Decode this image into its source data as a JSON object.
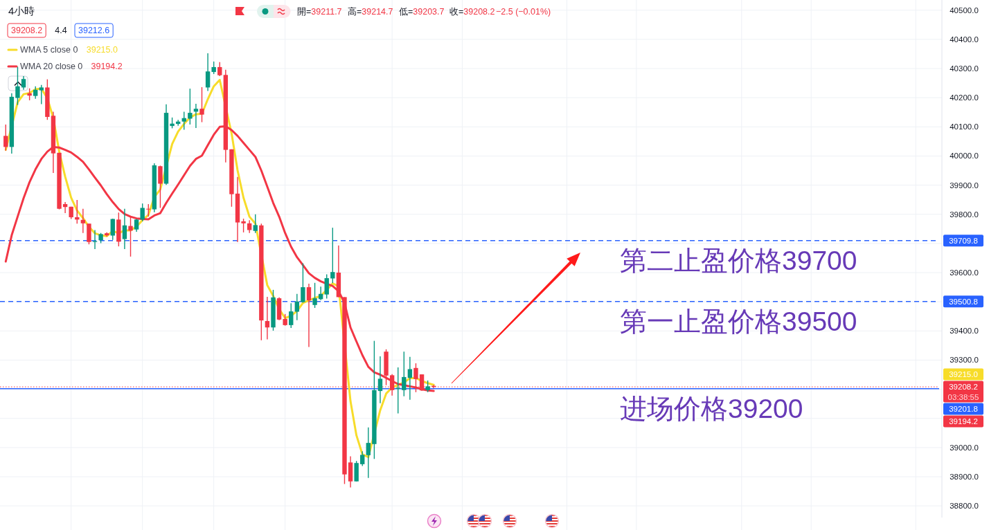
{
  "chart_data": {
    "type": "candlestick",
    "title": "4小時",
    "categories": [
      null,
      null,
      null,
      null,
      null,
      null,
      null,
      null,
      null,
      null,
      null,
      null,
      null,
      null,
      null,
      null,
      null,
      null,
      null,
      null,
      null,
      null,
      null,
      null,
      null,
      null,
      null,
      null,
      null,
      null,
      null,
      null,
      null,
      null,
      null,
      null,
      null,
      null,
      null,
      null,
      null,
      null,
      null,
      null,
      null,
      null,
      null,
      null,
      null,
      null,
      null,
      null,
      null,
      null,
      null,
      null,
      null,
      null,
      null,
      null,
      null,
      null,
      null,
      null,
      null,
      null,
      null,
      null,
      null,
      null,
      null,
      null,
      null,
      null,
      null,
      null,
      null,
      null,
      null,
      null,
      null,
      null,
      null,
      null,
      null,
      null,
      null,
      null,
      null,
      null,
      null,
      null,
      null,
      null,
      null,
      null,
      null,
      null,
      null,
      null,
      null,
      null,
      null,
      null,
      null,
      null,
      null,
      null,
      null,
      null,
      null,
      null,
      null,
      null,
      null,
      null,
      null,
      null,
      null,
      null,
      null,
      null,
      null,
      null,
      null,
      null,
      null,
      null,
      null,
      null,
      null,
      null,
      null,
      null,
      null,
      null,
      null,
      null,
      null,
      null,
      null,
      null,
      null,
      null,
      null,
      null,
      null,
      null,
      null,
      null,
      null,
      null,
      null,
      null,
      null,
      null,
      null,
      null
    ],
    "ohlc": [
      [
        40069,
        40108,
        40018,
        40031
      ],
      [
        40031,
        40215,
        40008,
        40203
      ],
      [
        40199,
        40306,
        40175,
        40239
      ],
      [
        40235,
        40274,
        40227,
        40264
      ],
      [
        40215,
        40232,
        40191,
        40207
      ],
      [
        40206,
        40239,
        40196,
        40227
      ],
      [
        40225,
        40244,
        40178,
        40235
      ],
      [
        40235,
        40263,
        40124,
        40134
      ],
      [
        40138,
        40152,
        39942,
        40009
      ],
      [
        40011,
        40011,
        39817,
        39819
      ],
      [
        39835,
        39842,
        39804,
        39825
      ],
      [
        39826,
        39826,
        39784,
        39790
      ],
      [
        39790,
        39849,
        39768,
        39782
      ],
      [
        39781,
        39819,
        39736,
        39769
      ],
      [
        39768,
        39768,
        39697,
        39705
      ],
      [
        39705,
        39746,
        39681,
        39708
      ],
      [
        39711,
        39736,
        39701,
        39732
      ],
      [
        39735,
        39738,
        39724,
        39728
      ],
      [
        39727,
        39785,
        39712,
        39784
      ],
      [
        39782,
        39806,
        39690,
        39706
      ],
      [
        39715,
        39819,
        39681,
        39762
      ],
      [
        39760,
        39793,
        39655,
        39744
      ],
      [
        39748,
        39784,
        39740,
        39782
      ],
      [
        39782,
        39837,
        39776,
        39822
      ],
      [
        39819,
        39835,
        39792,
        39817
      ],
      [
        39817,
        39975,
        39807,
        39968
      ],
      [
        39965,
        39967,
        39822,
        39905
      ],
      [
        39905,
        40177,
        39901,
        40148
      ],
      [
        40103,
        40132,
        40095,
        40111
      ],
      [
        40110,
        40124,
        40104,
        40118
      ],
      [
        40118,
        40152,
        40090,
        40130
      ],
      [
        40128,
        40231,
        40108,
        40148
      ],
      [
        40152,
        40179,
        40096,
        40162
      ],
      [
        40162,
        40236,
        40116,
        40142
      ],
      [
        40235,
        40352,
        40223,
        40290
      ],
      [
        40288,
        40324,
        40281,
        40305
      ],
      [
        40305,
        40322,
        40274,
        40277
      ],
      [
        40278,
        40296,
        39978,
        40021
      ],
      [
        40023,
        40023,
        39826,
        39869
      ],
      [
        39871,
        39928,
        39705,
        39772
      ],
      [
        39776,
        39785,
        39738,
        39769
      ],
      [
        39769,
        39780,
        39736,
        39746
      ],
      [
        39743,
        39800,
        39736,
        39763
      ],
      [
        39762,
        39768,
        39368,
        39436
      ],
      [
        39434,
        39517,
        39371,
        39412
      ],
      [
        39412,
        39541,
        39401,
        39515
      ],
      [
        39512,
        39515,
        39437,
        39439
      ],
      [
        39441,
        39458,
        39418,
        39420
      ],
      [
        39420,
        39495,
        39410,
        39467
      ],
      [
        39466,
        39527,
        39437,
        39501
      ],
      [
        39499,
        39632,
        39497,
        39550
      ],
      [
        39550,
        39562,
        39345,
        39505
      ],
      [
        39489,
        39565,
        39479,
        39512
      ],
      [
        39509,
        39552,
        39506,
        39527
      ],
      [
        39525,
        39594,
        39511,
        39581
      ],
      [
        39580,
        39754,
        39564,
        39602
      ],
      [
        39600,
        39693,
        39516,
        39516
      ],
      [
        39516,
        39516,
        38875,
        38908
      ],
      [
        38949,
        38970,
        38863,
        38884
      ],
      [
        38884,
        38954,
        38884,
        38947
      ],
      [
        38943,
        38987,
        38937,
        38975
      ],
      [
        38974,
        39069,
        38896,
        39016
      ],
      [
        39012,
        39366,
        38961,
        39197
      ],
      [
        39194,
        39313,
        39152,
        39236
      ],
      [
        39329,
        39337,
        39214,
        39247
      ],
      [
        39248,
        39252,
        39178,
        39197
      ],
      [
        39201,
        39275,
        39117,
        39205
      ],
      [
        39197,
        39329,
        39176,
        39242
      ],
      [
        39239,
        39311,
        39164,
        39269
      ],
      [
        39273,
        39289,
        39190,
        39235
      ],
      [
        39251,
        39251,
        39194,
        39196
      ],
      [
        39197,
        39230,
        39190,
        39210
      ],
      [
        39211.7,
        39214.7,
        39203.7,
        39208.2
      ],
      null,
      null,
      null,
      null,
      null,
      null,
      null,
      null,
      null,
      null,
      null,
      null,
      null,
      null,
      null,
      null,
      null,
      null,
      null,
      null,
      null,
      null,
      null,
      null,
      null,
      null,
      null,
      null,
      null,
      null,
      null,
      null,
      null,
      null,
      null,
      null,
      null,
      null,
      null,
      null,
      null,
      null,
      null,
      null,
      null,
      null,
      null,
      null,
      null,
      null,
      null,
      null,
      null,
      null,
      null,
      null,
      null,
      null,
      null,
      null,
      null,
      null,
      null,
      null,
      null,
      null,
      null,
      null,
      null,
      null,
      null,
      null,
      null,
      null,
      null,
      null,
      null,
      null,
      null,
      null,
      null,
      null,
      null,
      null,
      null
    ],
    "colors": [
      "#f23645",
      "#089981",
      "#089981",
      "#089981",
      "#f23645",
      "#089981",
      "#089981",
      "#f23645",
      "#f23645",
      "#f23645",
      "#f23645",
      "#f23645",
      "#f23645",
      "#f23645",
      "#f23645",
      "#089981",
      "#089981",
      "#f23645",
      "#089981",
      "#f23645",
      "#089981",
      "#f23645",
      "#089981",
      "#089981",
      "#f23645",
      "#089981",
      "#f23645",
      "#089981",
      "#089981",
      "#089981",
      "#089981",
      "#089981",
      "#089981",
      "#f23645",
      "#089981",
      "#089981",
      "#f23645",
      "#f23645",
      "#f23645",
      "#f23645",
      "#f23645",
      "#f23645",
      "#089981",
      "#f23645",
      "#f23645",
      "#089981",
      "#f23645",
      "#f23645",
      "#089981",
      "#089981",
      "#089981",
      "#f23645",
      "#089981",
      "#089981",
      "#089981",
      "#089981",
      "#f23645",
      "#f23645",
      "#f23645",
      "#089981",
      "#089981",
      "#089981",
      "#089981",
      "#089981",
      "#f23645",
      "#f23645",
      "#089981",
      "#089981",
      "#089981",
      "#f23645",
      "#f23645",
      "#089981",
      "#f23645",
      null,
      null,
      null,
      null,
      null,
      null,
      null,
      null,
      null,
      null,
      null,
      null,
      null,
      null,
      null,
      null,
      null,
      null,
      null,
      null,
      null,
      null,
      null,
      null,
      null,
      null,
      null,
      null,
      null,
      null,
      null,
      null,
      null,
      null,
      null,
      null,
      null,
      null,
      null,
      null,
      null,
      null,
      null,
      null,
      null,
      null,
      null,
      null,
      null,
      null,
      null,
      null,
      null,
      null,
      null,
      null,
      null,
      null,
      null,
      null,
      null,
      null,
      null,
      null,
      null,
      null,
      null,
      null,
      null,
      null,
      null,
      null,
      null,
      null,
      null,
      null,
      null,
      null,
      null,
      null,
      null,
      null,
      null,
      null,
      null
    ],
    "series": [
      {
        "name": "WMA 5 close 0",
        "type": "line",
        "color": "#f7dc2a",
        "values": [
          40021,
          null,
          40184,
          40212,
          40216,
          40229,
          40231,
          40198,
          40130,
          40015,
          39929,
          39857,
          39813,
          39787,
          39757,
          39735,
          39728,
          39725,
          39743,
          39735,
          39745,
          39745,
          39758,
          39780,
          39798,
          39859,
          39885,
          null,
          40041,
          40084,
          40110,
          40132,
          40143,
          40145,
          40195,
          40239,
          40261,
          null,
          40077,
          39951,
          39857,
          39792,
          39768,
          null,
          39557,
          39520,
          39475,
          39444,
          39452,
          39468,
          39496,
          39505,
          39513,
          39520,
          39541,
          39563,
          39553,
          null,
          39159,
          39042,
          38977,
          38967,
          null,
          39128,
          39185,
          39206,
          39215,
          39223,
          39238,
          39239,
          39228,
          39221,
          39215.0,
          null,
          null,
          null,
          null,
          null,
          null,
          null,
          null,
          null,
          null,
          null,
          null,
          null,
          null,
          null,
          null,
          null,
          null,
          null,
          null,
          null,
          null,
          null,
          null,
          null,
          null,
          null,
          null,
          null,
          null,
          null,
          null,
          null,
          null,
          null,
          null,
          null,
          null,
          null,
          null,
          null,
          null,
          null,
          null,
          null,
          null,
          null,
          null,
          null,
          null,
          null,
          null,
          null,
          null,
          null,
          null,
          null,
          null,
          null,
          null,
          null,
          null,
          null,
          null,
          null,
          null,
          null,
          null,
          null,
          null,
          null,
          null,
          null,
          null,
          null,
          null,
          null,
          null,
          null,
          null,
          null,
          null,
          null,
          null,
          null
        ]
      },
      {
        "name": "WMA 20 close 0",
        "type": "line",
        "color": "#f23645",
        "values": [
          39638,
          39728,
          39792,
          39855,
          39910,
          39954,
          39990,
          40015,
          40031,
          40029,
          40021,
          40012,
          39997,
          39980,
          39954,
          39926,
          39899,
          39869,
          39842,
          39818,
          39801,
          39792,
          39786,
          39784,
          39783,
          39796,
          39804,
          39839,
          39871,
          39902,
          39934,
          39966,
          39990,
          40001,
          40037,
          40073,
          40100,
          40102,
          40089,
          40069,
          40045,
          40021,
          39997,
          39950,
          39895,
          39839,
          39792,
          39736,
          39689,
          39653,
          39626,
          39598,
          39582,
          39570,
          39562,
          39554,
          39536,
          39496,
          39412,
          39364,
          39317,
          39277,
          39258,
          39250,
          39239,
          39228,
          39218,
          39214,
          39210,
          39206,
          39200,
          39196,
          39194.2,
          null,
          null,
          null,
          null,
          null,
          null,
          null,
          null,
          null,
          null,
          null,
          null,
          null,
          null,
          null,
          null,
          null,
          null,
          null,
          null,
          null,
          null,
          null,
          null,
          null,
          null,
          null,
          null,
          null,
          null,
          null,
          null,
          null,
          null,
          null,
          null,
          null,
          null,
          null,
          null,
          null,
          null,
          null,
          null,
          null,
          null,
          null,
          null,
          null,
          null,
          null,
          null,
          null,
          null,
          null,
          null,
          null,
          null,
          null,
          null,
          null,
          null,
          null,
          null,
          null,
          null,
          null,
          null,
          null,
          null,
          null,
          null,
          null,
          null,
          null,
          null,
          null,
          null,
          null,
          null,
          null,
          null,
          null,
          null,
          null
        ]
      }
    ],
    "ylim": [
      38760,
      40535
    ],
    "yticks": [
      {
        "value": 38800,
        "label": "38800.0"
      },
      {
        "value": 38900,
        "label": "38900.0"
      },
      {
        "value": 39000,
        "label": "39000.0"
      },
      {
        "value": 39100,
        "label": null
      },
      {
        "value": 39200,
        "label": null
      },
      {
        "value": 39300,
        "label": "39300.0"
      },
      {
        "value": 39400,
        "label": "39400.0"
      },
      {
        "value": 39500,
        "label": null
      },
      {
        "value": 39600,
        "label": "39600.0"
      },
      {
        "value": 39700,
        "label": null
      },
      {
        "value": 39800,
        "label": "39800.0"
      },
      {
        "value": 39900,
        "label": "39900.0"
      },
      {
        "value": 40000,
        "label": "40000.0"
      },
      {
        "value": 40100,
        "label": "40100.0"
      },
      {
        "value": 40200,
        "label": "40200.0"
      },
      {
        "value": 40300,
        "label": "40300.0"
      },
      {
        "value": 40400,
        "label": "40400.0"
      },
      {
        "value": 40500,
        "label": "40500.0"
      }
    ],
    "tick_labels": "y",
    "grid": true,
    "legend": "top left",
    "ref_lines": [
      {
        "axis": "y",
        "value": 39709.8,
        "label": "39709.8",
        "color": "#2962ff",
        "line_style": "dashed"
      },
      {
        "axis": "y",
        "value": 39500.8,
        "label": "39500.8",
        "color": "#2962ff",
        "line_style": "dashed"
      },
      {
        "axis": "y",
        "value": 39201.8,
        "label": "39201.8",
        "color": "#2962ff",
        "line_style": "solid"
      },
      {
        "axis": "y",
        "value": 39208.2,
        "label": "39208.2",
        "color": "#f23645",
        "line_style": "dotted"
      }
    ],
    "annotations": [
      "開=39211.7",
      "高=39214.7",
      "低=39203.7",
      "收=39208.2",
      "−2.5 (−0.01%)",
      "39208.2",
      "4.4",
      "39212.6",
      "03:38:55",
      "39215.0",
      "39194.2",
      {
        "text": "第二止盈价格39700",
        "y": 39709.8
      },
      {
        "text": "第一止盈价格39500",
        "y": 39500.8
      },
      {
        "text": "进场价格39200",
        "y": 39201.8
      }
    ]
  }
}
